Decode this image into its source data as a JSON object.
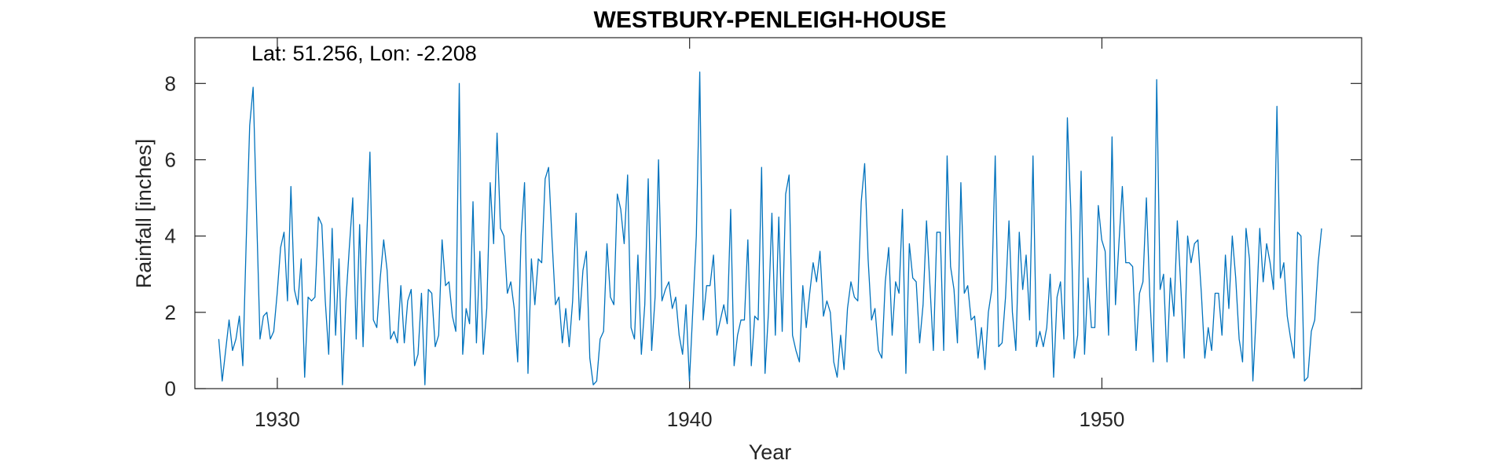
{
  "chart_data": {
    "type": "line",
    "title": "WESTBURY-PENLEIGH-HOUSE",
    "annotation": "Lat: 51.256, Lon: -2.208",
    "xlabel": "Year",
    "ylabel": "Rainfall [inches]",
    "xlim": [
      1928.0,
      1956.3
    ],
    "ylim": [
      0,
      9.2
    ],
    "xticks": [
      1930,
      1940,
      1950
    ],
    "yticks": [
      0,
      2,
      4,
      6,
      8
    ],
    "grid": false,
    "line_color": "#0072BD",
    "series": [
      {
        "x_start": 1928.58,
        "x_step": 0.08333,
        "values": [
          1.3,
          0.2,
          1.0,
          1.8,
          1.0,
          1.3,
          1.9,
          0.6,
          3.9,
          6.9,
          7.9,
          4.6,
          1.3,
          1.9,
          2.0,
          1.3,
          1.5,
          2.5,
          3.7,
          4.1,
          2.3,
          5.3,
          2.6,
          2.2,
          3.4,
          0.3,
          2.4,
          2.3,
          2.4,
          4.5,
          4.3,
          2.3,
          0.9,
          4.2,
          1.4,
          3.4,
          0.1,
          2.3,
          3.7,
          5.0,
          1.3,
          4.3,
          1.1,
          3.8,
          6.2,
          1.8,
          1.6,
          2.9,
          3.9,
          3.1,
          1.3,
          1.5,
          1.2,
          2.7,
          1.2,
          2.3,
          2.6,
          0.6,
          0.9,
          2.5,
          0.1,
          2.6,
          2.5,
          1.1,
          1.4,
          3.9,
          2.7,
          2.8,
          1.9,
          1.5,
          8.0,
          0.9,
          2.1,
          1.7,
          4.9,
          1.2,
          3.6,
          0.9,
          2.1,
          5.4,
          3.8,
          6.7,
          4.2,
          4.0,
          2.5,
          2.8,
          2.1,
          0.7,
          4.0,
          5.4,
          0.4,
          3.4,
          2.2,
          3.4,
          3.3,
          5.5,
          5.8,
          3.9,
          2.2,
          2.4,
          1.2,
          2.1,
          1.1,
          2.3,
          4.6,
          1.8,
          3.1,
          3.6,
          0.8,
          0.1,
          0.2,
          1.3,
          1.5,
          3.8,
          2.4,
          2.2,
          5.1,
          4.7,
          3.8,
          5.6,
          1.6,
          1.3,
          3.5,
          0.9,
          2.2,
          5.5,
          1.0,
          2.4,
          6.0,
          2.3,
          2.6,
          2.8,
          2.1,
          2.4,
          1.4,
          0.9,
          2.2,
          0.2,
          2.1,
          4.0,
          8.3,
          1.8,
          2.7,
          2.7,
          3.5,
          1.4,
          1.8,
          2.2,
          1.7,
          4.7,
          0.6,
          1.4,
          1.8,
          1.8,
          3.9,
          0.6,
          1.9,
          1.8,
          5.8,
          0.4,
          2.0,
          4.6,
          1.4,
          4.5,
          1.5,
          5.1,
          5.6,
          1.4,
          1.0,
          0.7,
          2.7,
          1.6,
          2.5,
          3.3,
          2.8,
          3.6,
          1.9,
          2.3,
          2.0,
          0.7,
          0.3,
          1.4,
          0.5,
          2.1,
          2.8,
          2.4,
          2.3,
          4.9,
          5.9,
          3.4,
          1.8,
          2.1,
          1.0,
          0.8,
          2.8,
          3.7,
          1.4,
          2.8,
          2.5,
          4.7,
          0.4,
          3.8,
          2.9,
          2.8,
          1.2,
          2.2,
          4.4,
          2.7,
          1.0,
          4.1,
          4.1,
          1.0,
          6.1,
          3.2,
          2.6,
          1.2,
          5.4,
          2.5,
          2.7,
          1.8,
          1.9,
          0.8,
          1.6,
          0.5,
          2.0,
          2.6,
          6.1,
          1.1,
          1.2,
          2.4,
          4.4,
          2.0,
          1.0,
          4.1,
          2.6,
          3.5,
          1.8,
          6.1,
          1.1,
          1.5,
          1.1,
          1.6,
          3.0,
          0.3,
          2.4,
          2.8,
          1.3,
          7.1,
          4.7,
          0.8,
          1.4,
          5.7,
          0.9,
          2.9,
          1.6,
          1.6,
          4.8,
          3.9,
          3.6,
          1.4,
          6.6,
          2.2,
          3.8,
          5.3,
          3.3,
          3.3,
          3.2,
          1.0,
          2.5,
          2.8,
          5.0,
          2.4,
          0.7,
          8.1,
          2.6,
          3.0,
          0.7,
          2.9,
          1.9,
          4.4,
          2.7,
          0.8,
          4.0,
          3.3,
          3.8,
          3.9,
          2.5,
          0.8,
          1.6,
          1.0,
          2.5,
          2.5,
          1.4,
          3.5,
          2.1,
          4.0,
          2.9,
          1.3,
          0.7,
          4.2,
          3.4,
          0.2,
          2.0,
          4.2,
          2.8,
          3.8,
          3.3,
          2.6,
          7.4,
          2.9,
          3.3,
          1.9,
          1.3,
          0.8,
          4.1,
          4.0,
          0.2,
          0.3,
          1.5,
          1.8,
          3.3,
          4.2
        ]
      }
    ]
  }
}
